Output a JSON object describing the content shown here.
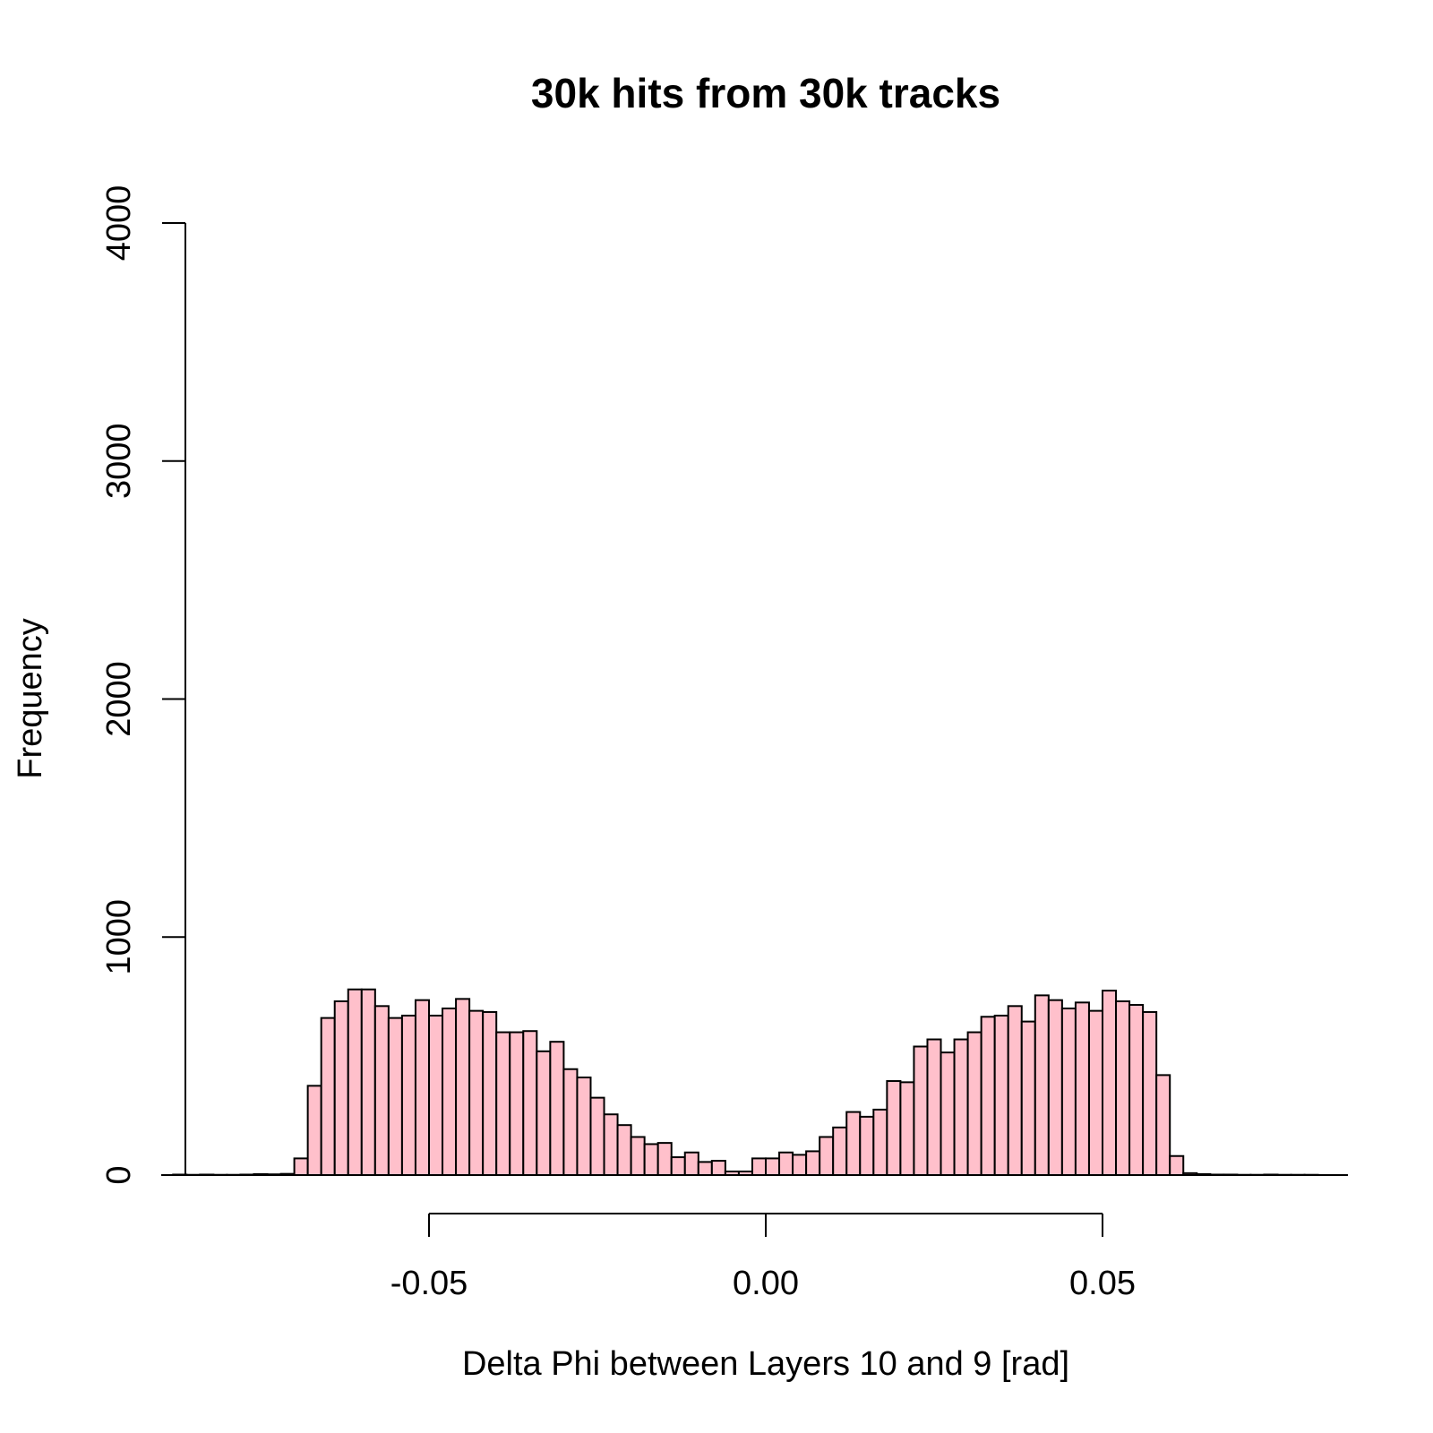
{
  "chart_data": {
    "type": "bar",
    "subtype": "histogram",
    "title": "30k hits from 30k tracks",
    "xlabel": "Delta Phi between Layers 10 and 9 [rad]",
    "ylabel": "Frequency",
    "xlim": [
      -0.09,
      0.09
    ],
    "ylim": [
      0,
      4000
    ],
    "bin_width": 0.002,
    "bin_start": -0.088,
    "x_ticks": [
      {
        "value": -0.05,
        "label": "-0.05"
      },
      {
        "value": 0.0,
        "label": "0.00"
      },
      {
        "value": 0.05,
        "label": "0.05"
      }
    ],
    "y_ticks": [
      {
        "value": 0,
        "label": "0"
      },
      {
        "value": 1000,
        "label": "1000"
      },
      {
        "value": 2000,
        "label": "2000"
      },
      {
        "value": 3000,
        "label": "3000"
      },
      {
        "value": 4000,
        "label": "4000"
      }
    ],
    "values": [
      2,
      1,
      2,
      1,
      1,
      2,
      4,
      3,
      5,
      70,
      375,
      660,
      730,
      780,
      780,
      710,
      660,
      670,
      735,
      670,
      700,
      740,
      690,
      685,
      600,
      600,
      605,
      520,
      560,
      445,
      410,
      325,
      255,
      210,
      160,
      130,
      135,
      75,
      95,
      55,
      60,
      15,
      15,
      70,
      70,
      95,
      85,
      100,
      160,
      200,
      265,
      245,
      275,
      395,
      390,
      540,
      570,
      515,
      570,
      600,
      665,
      670,
      710,
      645,
      755,
      735,
      700,
      725,
      690,
      775,
      730,
      715,
      685,
      420,
      80,
      8,
      4,
      2,
      2,
      1,
      1,
      2,
      1,
      1,
      1
    ],
    "bar_color": "#FFC0CB",
    "grid": false
  }
}
